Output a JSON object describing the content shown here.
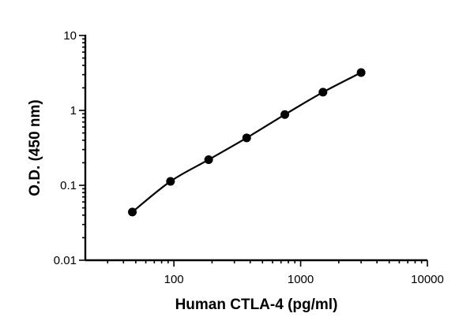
{
  "chart_data": {
    "type": "scatter",
    "title": "",
    "xlabel": "Human CTLA-4 (pg/ml)",
    "ylabel": "O.D. (450 nm)",
    "xscale": "log",
    "yscale": "log",
    "xlim": [
      20,
      10000
    ],
    "ylim": [
      0.01,
      10
    ],
    "x_ticks": [
      {
        "value": 100,
        "label": "100"
      },
      {
        "value": 1000,
        "label": "1000"
      },
      {
        "value": 10000,
        "label": "10000"
      }
    ],
    "y_ticks": [
      {
        "value": 0.01,
        "label": "0.01"
      },
      {
        "value": 0.1,
        "label": "0.1"
      },
      {
        "value": 1,
        "label": "1"
      },
      {
        "value": 10,
        "label": "10"
      }
    ],
    "grid": false,
    "legend": "none",
    "fit_curve": true,
    "series": [
      {
        "x": [
          47,
          94,
          188,
          375,
          750,
          1500,
          3000
        ],
        "y": [
          0.044,
          0.113,
          0.22,
          0.43,
          0.88,
          1.75,
          3.2
        ]
      }
    ]
  }
}
